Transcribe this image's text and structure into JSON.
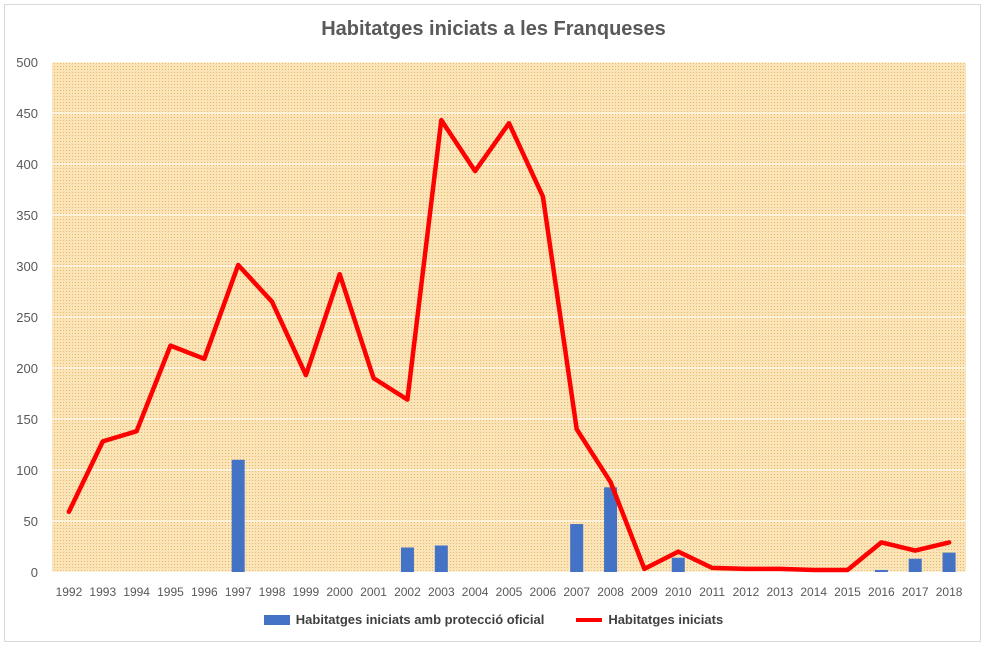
{
  "chart_data": {
    "type": "bar+line",
    "title": "Habitatges iniciats a les Franqueses",
    "categories": [
      "1992",
      "1993",
      "1994",
      "1995",
      "1996",
      "1997",
      "1998",
      "1999",
      "2000",
      "2001",
      "2002",
      "2003",
      "2004",
      "2005",
      "2006",
      "2007",
      "2008",
      "2009",
      "2010",
      "2011",
      "2012",
      "2013",
      "2014",
      "2015",
      "2016",
      "2017",
      "2018"
    ],
    "series": [
      {
        "name": "Habitatges iniciats amb protecció oficial",
        "type": "bar",
        "color": "#4472c4",
        "values": [
          0,
          0,
          0,
          0,
          0,
          110,
          0,
          0,
          0,
          0,
          24,
          26,
          0,
          0,
          0,
          47,
          83,
          0,
          14,
          0,
          0,
          0,
          0,
          0,
          2,
          13,
          19
        ]
      },
      {
        "name": "Habitatges iniciats",
        "type": "line",
        "color": "#ff0000",
        "values": [
          59,
          128,
          138,
          222,
          209,
          301,
          265,
          193,
          292,
          190,
          169,
          443,
          393,
          440,
          368,
          140,
          88,
          3,
          20,
          4,
          3,
          3,
          2,
          2,
          29,
          21,
          29
        ]
      }
    ],
    "ylim": [
      0,
      500
    ],
    "yticks": [
      0,
      50,
      100,
      150,
      200,
      250,
      300,
      350,
      400,
      450,
      500
    ],
    "grid": true,
    "legend_position": "bottom",
    "plot_background": "#f5deb3"
  }
}
